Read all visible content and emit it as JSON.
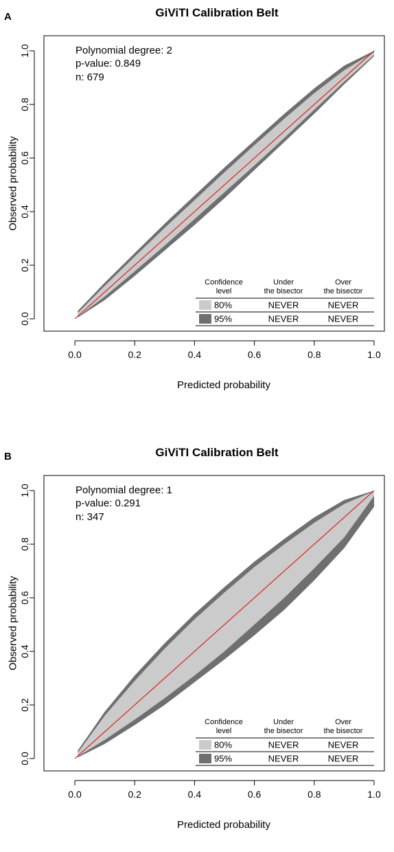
{
  "colors": {
    "belt80": "#cbcbcb",
    "belt95": "#6f6f6f",
    "bisector": "#e00000",
    "axis": "#000000"
  },
  "chart_data": [
    {
      "panel_label": "A",
      "type": "area",
      "title": "GiViTI Calibration Belt",
      "xlabel": "Predicted probability",
      "ylabel": "Observed probability",
      "xlim": [
        0.0,
        1.0
      ],
      "ylim": [
        0.0,
        1.0
      ],
      "x_ticks": [
        "0.0",
        "0.2",
        "0.4",
        "0.6",
        "0.8",
        "1.0"
      ],
      "y_ticks": [
        "0.0",
        "0.2",
        "0.4",
        "0.6",
        "0.8",
        "1.0"
      ],
      "grid": false,
      "stats": {
        "degree": "Polynomial degree: 2",
        "pvalue": "p-value: 0.849",
        "n": "n: 679"
      },
      "belt": {
        "x": [
          0.01,
          0.1,
          0.2,
          0.3,
          0.4,
          0.5,
          0.6,
          0.7,
          0.8,
          0.9,
          1.0
        ],
        "upper_95": [
          0.03,
          0.135,
          0.245,
          0.355,
          0.46,
          0.565,
          0.665,
          0.765,
          0.86,
          0.945,
          1.0
        ],
        "upper_80": [
          0.022,
          0.123,
          0.232,
          0.339,
          0.443,
          0.547,
          0.648,
          0.747,
          0.842,
          0.928,
          0.995
        ],
        "lower_80": [
          0.008,
          0.083,
          0.177,
          0.273,
          0.372,
          0.472,
          0.572,
          0.675,
          0.78,
          0.885,
          0.985
        ],
        "lower_95": [
          0.005,
          0.07,
          0.16,
          0.255,
          0.35,
          0.45,
          0.555,
          0.66,
          0.765,
          0.875,
          0.98
        ]
      },
      "legend": {
        "position": "bottom-right",
        "headers": [
          "Confidence\nlevel",
          "Under\nthe bisector",
          "Over\nthe bisector"
        ],
        "rows": [
          {
            "level": "80%",
            "under": "NEVER",
            "over": "NEVER"
          },
          {
            "level": "95%",
            "under": "NEVER",
            "over": "NEVER"
          }
        ]
      }
    },
    {
      "panel_label": "B",
      "type": "area",
      "title": "GiViTI Calibration Belt",
      "xlabel": "Predicted probability",
      "ylabel": "Observed probability",
      "xlim": [
        0.0,
        1.0
      ],
      "ylim": [
        0.0,
        1.0
      ],
      "x_ticks": [
        "0.0",
        "0.2",
        "0.4",
        "0.6",
        "0.8",
        "1.0"
      ],
      "y_ticks": [
        "0.0",
        "0.2",
        "0.4",
        "0.6",
        "0.8",
        "1.0"
      ],
      "grid": false,
      "stats": {
        "degree": "Polynomial degree: 1",
        "pvalue": "p-value: 0.291",
        "n": "n: 347"
      },
      "belt": {
        "x": [
          0.01,
          0.1,
          0.2,
          0.3,
          0.4,
          0.5,
          0.6,
          0.7,
          0.8,
          0.9,
          1.0
        ],
        "upper_95": [
          0.03,
          0.175,
          0.31,
          0.43,
          0.54,
          0.64,
          0.735,
          0.82,
          0.9,
          0.965,
          1.0
        ],
        "upper_80": [
          0.022,
          0.16,
          0.29,
          0.41,
          0.52,
          0.62,
          0.715,
          0.8,
          0.88,
          0.95,
          0.998
        ],
        "lower_80": [
          0.008,
          0.07,
          0.145,
          0.225,
          0.31,
          0.4,
          0.5,
          0.6,
          0.71,
          0.825,
          0.98
        ],
        "lower_95": [
          0.004,
          0.055,
          0.125,
          0.2,
          0.285,
          0.37,
          0.46,
          0.555,
          0.665,
          0.785,
          0.94
        ]
      },
      "legend": {
        "position": "bottom-right",
        "headers": [
          "Confidence\nlevel",
          "Under\nthe bisector",
          "Over\nthe bisector"
        ],
        "rows": [
          {
            "level": "80%",
            "under": "NEVER",
            "over": "NEVER"
          },
          {
            "level": "95%",
            "under": "NEVER",
            "over": "NEVER"
          }
        ]
      }
    }
  ]
}
